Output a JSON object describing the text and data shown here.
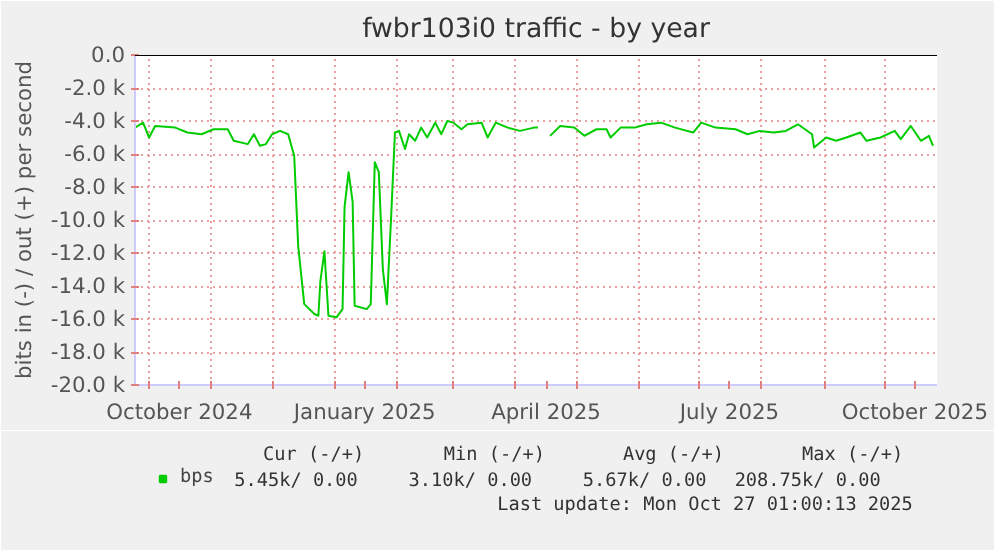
{
  "chart_data": {
    "type": "line",
    "title": "fwbr103i0 traffic - by year",
    "ylabel": "bits in (-) / out (+) per second",
    "x": [
      "2024-09-24",
      "2024-09-28",
      "2024-10-01",
      "2024-10-04",
      "2024-10-14",
      "2024-10-20",
      "2024-10-27",
      "2024-11-02",
      "2024-11-09",
      "2024-11-12",
      "2024-11-19",
      "2024-11-22",
      "2024-11-25",
      "2024-11-28",
      "2024-12-01",
      "2024-12-05",
      "2024-12-09",
      "2024-12-12",
      "2024-12-14",
      "2024-12-17",
      "2024-12-22",
      "2024-12-24",
      "2024-12-25",
      "2024-12-27",
      "2024-12-29",
      "2025-01-02",
      "2025-01-05",
      "2025-01-06",
      "2025-01-08",
      "2025-01-10",
      "2025-01-11",
      "2025-01-17",
      "2025-01-19",
      "2025-01-21",
      "2025-01-23",
      "2025-01-25",
      "2025-01-27",
      "2025-01-29",
      "2025-01-31",
      "2025-02-02",
      "2025-02-05",
      "2025-02-07",
      "2025-02-10",
      "2025-02-13",
      "2025-02-16",
      "2025-02-20",
      "2025-02-23",
      "2025-02-26",
      "2025-03-01",
      "2025-03-05",
      "2025-03-08",
      "2025-03-15",
      "2025-03-18",
      "2025-03-22",
      "2025-03-28",
      "2025-04-03",
      "2025-04-10",
      "2025-04-12",
      "2025-04-15",
      "2025-04-18",
      "2025-04-23",
      "2025-04-30",
      "2025-05-05",
      "2025-05-11",
      "2025-05-16",
      "2025-05-18",
      "2025-05-23",
      "2025-05-30",
      "2025-06-05",
      "2025-06-12",
      "2025-06-19",
      "2025-06-28",
      "2025-07-02",
      "2025-07-09",
      "2025-07-19",
      "2025-07-25",
      "2025-07-31",
      "2025-08-07",
      "2025-08-13",
      "2025-08-19",
      "2025-08-26",
      "2025-08-27",
      "2025-09-02",
      "2025-09-07",
      "2025-09-12",
      "2025-09-19",
      "2025-09-22",
      "2025-09-29",
      "2025-10-06",
      "2025-10-09",
      "2025-10-14",
      "2025-10-19",
      "2025-10-23",
      "2025-10-25"
    ],
    "series": [
      {
        "name": "bps",
        "color": "#00cc00",
        "values": [
          -4400,
          -4100,
          -5000,
          -4300,
          -4400,
          -4700,
          -4800,
          -4500,
          -4500,
          -5200,
          -5400,
          -4800,
          -5500,
          -5400,
          -4800,
          -4600,
          -4800,
          -6100,
          -11600,
          -15100,
          -15700,
          -15800,
          -13700,
          -11900,
          -15800,
          -15900,
          -15400,
          -9200,
          -7100,
          -8900,
          -15200,
          -15400,
          -15100,
          -6500,
          -7100,
          -13000,
          -15100,
          -10100,
          -4700,
          -4600,
          -5700,
          -4800,
          -5200,
          -4400,
          -5000,
          -4100,
          -4800,
          -4000,
          -4100,
          -4500,
          -4200,
          -4100,
          -5000,
          -4100,
          -4400,
          -4600,
          -4400,
          -4400,
          null,
          -4900,
          -4300,
          -4400,
          -4900,
          -4500,
          -4500,
          -5000,
          -4400,
          -4400,
          -4200,
          -4100,
          -4400,
          -4700,
          -4100,
          -4400,
          -4500,
          -4800,
          -4600,
          -4700,
          -4600,
          -4200,
          -4800,
          -5600,
          -5000,
          -5200,
          -5000,
          -4700,
          -5200,
          -5000,
          -4600,
          -5100,
          -4300,
          -5200,
          -4900,
          -5500
        ]
      }
    ],
    "xlim": [
      "2024-09-24",
      "2025-10-27"
    ],
    "xticks": [
      {
        "value": "2024-10-01",
        "label": null
      },
      {
        "value": "2024-10-16",
        "label": "October 2024"
      },
      {
        "value": "2024-11-01",
        "label": null
      },
      {
        "value": "2024-12-01",
        "label": null
      },
      {
        "value": "2025-01-01",
        "label": null
      },
      {
        "value": "2025-01-16",
        "label": "January 2025"
      },
      {
        "value": "2025-02-01",
        "label": null
      },
      {
        "value": "2025-03-01",
        "label": null
      },
      {
        "value": "2025-04-01",
        "label": null
      },
      {
        "value": "2025-04-16",
        "label": "April 2025"
      },
      {
        "value": "2025-05-01",
        "label": null
      },
      {
        "value": "2025-06-01",
        "label": null
      },
      {
        "value": "2025-07-01",
        "label": null
      },
      {
        "value": "2025-07-16",
        "label": "July 2025"
      },
      {
        "value": "2025-08-01",
        "label": null
      },
      {
        "value": "2025-09-01",
        "label": null
      },
      {
        "value": "2025-10-01",
        "label": null
      },
      {
        "value": "2025-10-16",
        "label": "October 2025"
      }
    ],
    "ylim": [
      -20000,
      0
    ],
    "yticks": [
      {
        "value": -20000,
        "label": "-20.0 k"
      },
      {
        "value": -18000,
        "label": "-18.0 k"
      },
      {
        "value": -16000,
        "label": "-16.0 k"
      },
      {
        "value": -14000,
        "label": "-14.0 k"
      },
      {
        "value": -12000,
        "label": "-12.0 k"
      },
      {
        "value": -10000,
        "label": "-10.0 k"
      },
      {
        "value": -8000,
        "label": "-8.0 k"
      },
      {
        "value": -6000,
        "label": "-6.0 k"
      },
      {
        "value": -4000,
        "label": "-4.0 k"
      },
      {
        "value": -2000,
        "label": "-2.0 k"
      },
      {
        "value": 0,
        "label": "0.0"
      }
    ],
    "ref_lines": [
      {
        "axis": "y",
        "value": 0,
        "color": "#000000"
      }
    ],
    "grid": true,
    "legend": "bottom left",
    "marker": "none",
    "line_style": "solid",
    "annotations": [
      "Cur (-/+)",
      "Min (-/+)",
      "Avg (-/+)",
      "Max (-/+)",
      "5.45k/   0.00",
      "3.10k/   0.00",
      "5.67k/   0.00",
      "208.75k/   0.00",
      "Last update: Mon Oct 27 01:00:13 2025"
    ]
  }
}
